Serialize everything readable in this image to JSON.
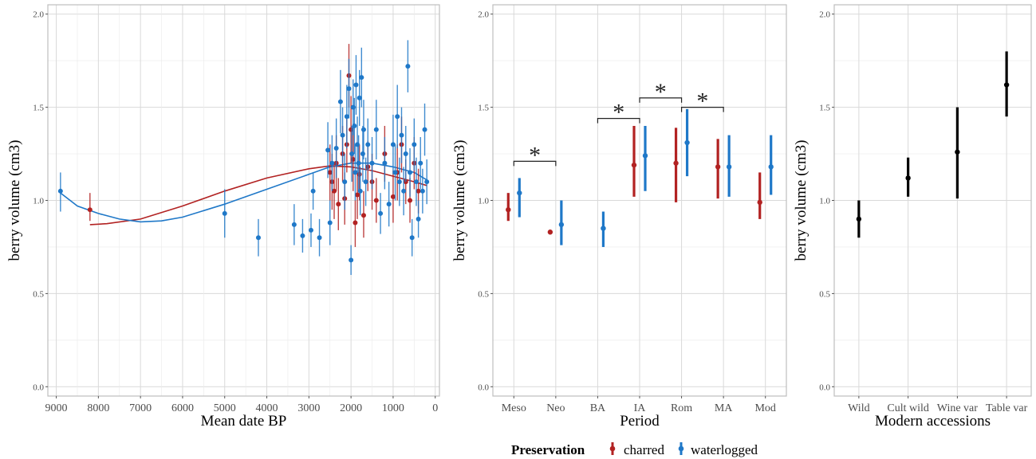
{
  "colors": {
    "charred": "#b22222",
    "waterlogged": "#1f78c8",
    "modern": "#000000",
    "grid": "#d9d9d9",
    "frame": "#bdbdbd"
  },
  "legend": {
    "title": "Preservation",
    "items": [
      "charred",
      "waterlogged"
    ],
    "placement": "bottom"
  },
  "chart_data": [
    {
      "type": "scatter",
      "xlabel": "Mean date BP",
      "ylabel": "berry volume (cm3)",
      "xlim": [
        9200,
        -100
      ],
      "x_reversed": true,
      "ylim": [
        -0.05,
        2.05
      ],
      "x_ticks": [
        9000,
        8000,
        7000,
        6000,
        5000,
        4000,
        3000,
        2000,
        1000,
        0
      ],
      "y_ticks": [
        0.0,
        0.5,
        1.0,
        1.5,
        2.0
      ],
      "grid": true,
      "series": [
        {
          "name": "charred",
          "points": [
            {
              "x": 8200,
              "y": 0.95,
              "lo": 0.89,
              "hi": 1.04
            },
            {
              "x": 2500,
              "y": 1.15,
              "lo": 1.0,
              "hi": 1.3
            },
            {
              "x": 2450,
              "y": 1.1,
              "lo": 0.95,
              "hi": 1.25
            },
            {
              "x": 2400,
              "y": 1.05,
              "lo": 0.9,
              "hi": 1.2
            },
            {
              "x": 2350,
              "y": 1.2,
              "lo": 1.05,
              "hi": 1.35
            },
            {
              "x": 2300,
              "y": 0.98,
              "lo": 0.84,
              "hi": 1.12
            },
            {
              "x": 2200,
              "y": 1.25,
              "lo": 1.1,
              "hi": 1.4
            },
            {
              "x": 2150,
              "y": 1.01,
              "lo": 0.87,
              "hi": 1.15
            },
            {
              "x": 2100,
              "y": 1.3,
              "lo": 1.15,
              "hi": 1.45
            },
            {
              "x": 2050,
              "y": 1.67,
              "lo": 1.5,
              "hi": 1.84
            },
            {
              "x": 2000,
              "y": 1.38,
              "lo": 1.2,
              "hi": 1.56
            },
            {
              "x": 1950,
              "y": 1.22,
              "lo": 1.05,
              "hi": 1.4
            },
            {
              "x": 1900,
              "y": 0.88,
              "lo": 0.75,
              "hi": 1.0
            },
            {
              "x": 1850,
              "y": 1.03,
              "lo": 0.9,
              "hi": 1.16
            },
            {
              "x": 1800,
              "y": 1.14,
              "lo": 1.0,
              "hi": 1.3
            },
            {
              "x": 1700,
              "y": 0.92,
              "lo": 0.8,
              "hi": 1.05
            },
            {
              "x": 1600,
              "y": 1.18,
              "lo": 1.05,
              "hi": 1.32
            },
            {
              "x": 1500,
              "y": 1.1,
              "lo": 0.95,
              "hi": 1.25
            },
            {
              "x": 1400,
              "y": 1.0,
              "lo": 0.88,
              "hi": 1.12
            },
            {
              "x": 1200,
              "y": 1.25,
              "lo": 1.1,
              "hi": 1.4
            },
            {
              "x": 1000,
              "y": 1.02,
              "lo": 0.88,
              "hi": 1.16
            },
            {
              "x": 900,
              "y": 1.15,
              "lo": 1.0,
              "hi": 1.3
            },
            {
              "x": 800,
              "y": 1.3,
              "lo": 1.15,
              "hi": 1.45
            },
            {
              "x": 700,
              "y": 1.1,
              "lo": 0.98,
              "hi": 1.22
            },
            {
              "x": 600,
              "y": 1.0,
              "lo": 0.88,
              "hi": 1.12
            },
            {
              "x": 500,
              "y": 1.2,
              "lo": 1.06,
              "hi": 1.34
            },
            {
              "x": 400,
              "y": 1.05,
              "lo": 0.93,
              "hi": 1.17
            }
          ]
        },
        {
          "name": "waterlogged",
          "points": [
            {
              "x": 8900,
              "y": 1.05,
              "lo": 0.94,
              "hi": 1.15
            },
            {
              "x": 5000,
              "y": 0.93,
              "lo": 0.8,
              "hi": 1.06
            },
            {
              "x": 4200,
              "y": 0.8,
              "lo": 0.7,
              "hi": 0.9
            },
            {
              "x": 3350,
              "y": 0.87,
              "lo": 0.76,
              "hi": 0.98
            },
            {
              "x": 3150,
              "y": 0.81,
              "lo": 0.72,
              "hi": 0.9
            },
            {
              "x": 2950,
              "y": 0.84,
              "lo": 0.75,
              "hi": 0.93
            },
            {
              "x": 2900,
              "y": 1.05,
              "lo": 0.95,
              "hi": 1.15
            },
            {
              "x": 2750,
              "y": 0.8,
              "lo": 0.7,
              "hi": 0.9
            },
            {
              "x": 2550,
              "y": 1.27,
              "lo": 1.12,
              "hi": 1.42
            },
            {
              "x": 2500,
              "y": 0.88,
              "lo": 0.76,
              "hi": 1.0
            },
            {
              "x": 2450,
              "y": 1.2,
              "lo": 1.05,
              "hi": 1.35
            },
            {
              "x": 2350,
              "y": 1.28,
              "lo": 1.12,
              "hi": 1.44
            },
            {
              "x": 2250,
              "y": 1.53,
              "lo": 1.36,
              "hi": 1.7
            },
            {
              "x": 2200,
              "y": 1.35,
              "lo": 1.2,
              "hi": 1.5
            },
            {
              "x": 2150,
              "y": 1.1,
              "lo": 0.95,
              "hi": 1.25
            },
            {
              "x": 2100,
              "y": 1.45,
              "lo": 1.28,
              "hi": 1.62
            },
            {
              "x": 2050,
              "y": 1.6,
              "lo": 1.44,
              "hi": 1.76
            },
            {
              "x": 2000,
              "y": 0.68,
              "lo": 0.6,
              "hi": 0.76
            },
            {
              "x": 1980,
              "y": 1.25,
              "lo": 1.1,
              "hi": 1.4
            },
            {
              "x": 1950,
              "y": 1.5,
              "lo": 1.35,
              "hi": 1.65
            },
            {
              "x": 1920,
              "y": 1.4,
              "lo": 1.25,
              "hi": 1.55
            },
            {
              "x": 1900,
              "y": 1.15,
              "lo": 1.0,
              "hi": 1.3
            },
            {
              "x": 1880,
              "y": 1.62,
              "lo": 1.46,
              "hi": 1.78
            },
            {
              "x": 1850,
              "y": 1.3,
              "lo": 1.15,
              "hi": 1.45
            },
            {
              "x": 1820,
              "y": 1.2,
              "lo": 1.05,
              "hi": 1.35
            },
            {
              "x": 1800,
              "y": 1.55,
              "lo": 1.4,
              "hi": 1.7
            },
            {
              "x": 1780,
              "y": 1.05,
              "lo": 0.92,
              "hi": 1.18
            },
            {
              "x": 1750,
              "y": 1.66,
              "lo": 1.5,
              "hi": 1.82
            },
            {
              "x": 1720,
              "y": 1.25,
              "lo": 1.1,
              "hi": 1.4
            },
            {
              "x": 1700,
              "y": 1.38,
              "lo": 1.22,
              "hi": 1.54
            },
            {
              "x": 1650,
              "y": 1.1,
              "lo": 0.97,
              "hi": 1.23
            },
            {
              "x": 1600,
              "y": 1.3,
              "lo": 1.16,
              "hi": 1.44
            },
            {
              "x": 1500,
              "y": 1.2,
              "lo": 1.06,
              "hi": 1.34
            },
            {
              "x": 1400,
              "y": 1.38,
              "lo": 1.22,
              "hi": 1.54
            },
            {
              "x": 1300,
              "y": 0.93,
              "lo": 0.82,
              "hi": 1.04
            },
            {
              "x": 1200,
              "y": 1.2,
              "lo": 1.06,
              "hi": 1.34
            },
            {
              "x": 1100,
              "y": 0.98,
              "lo": 0.86,
              "hi": 1.1
            },
            {
              "x": 1000,
              "y": 1.3,
              "lo": 1.14,
              "hi": 1.46
            },
            {
              "x": 950,
              "y": 1.15,
              "lo": 1.0,
              "hi": 1.3
            },
            {
              "x": 900,
              "y": 1.45,
              "lo": 1.28,
              "hi": 1.62
            },
            {
              "x": 850,
              "y": 1.1,
              "lo": 0.97,
              "hi": 1.23
            },
            {
              "x": 800,
              "y": 1.35,
              "lo": 1.2,
              "hi": 1.5
            },
            {
              "x": 750,
              "y": 1.05,
              "lo": 0.92,
              "hi": 1.18
            },
            {
              "x": 700,
              "y": 1.25,
              "lo": 1.1,
              "hi": 1.4
            },
            {
              "x": 650,
              "y": 1.72,
              "lo": 1.58,
              "hi": 1.86
            },
            {
              "x": 600,
              "y": 1.15,
              "lo": 1.02,
              "hi": 1.28
            },
            {
              "x": 550,
              "y": 0.8,
              "lo": 0.7,
              "hi": 0.9
            },
            {
              "x": 500,
              "y": 1.3,
              "lo": 1.16,
              "hi": 1.44
            },
            {
              "x": 450,
              "y": 1.1,
              "lo": 0.97,
              "hi": 1.23
            },
            {
              "x": 400,
              "y": 0.9,
              "lo": 0.8,
              "hi": 1.0
            },
            {
              "x": 350,
              "y": 1.2,
              "lo": 1.06,
              "hi": 1.34
            },
            {
              "x": 300,
              "y": 1.05,
              "lo": 0.93,
              "hi": 1.17
            },
            {
              "x": 250,
              "y": 1.38,
              "lo": 1.24,
              "hi": 1.52
            },
            {
              "x": 200,
              "y": 1.1,
              "lo": 0.98,
              "hi": 1.22
            }
          ]
        }
      ],
      "trend_lines": [
        {
          "name": "charred",
          "points": [
            [
              8200,
              0.87
            ],
            [
              7800,
              0.875
            ],
            [
              7000,
              0.9
            ],
            [
              6000,
              0.97
            ],
            [
              5000,
              1.05
            ],
            [
              4000,
              1.12
            ],
            [
              3000,
              1.17
            ],
            [
              2500,
              1.185
            ],
            [
              2000,
              1.18
            ],
            [
              1500,
              1.16
            ],
            [
              1000,
              1.13
            ],
            [
              500,
              1.1
            ],
            [
              200,
              1.08
            ]
          ]
        },
        {
          "name": "waterlogged",
          "points": [
            [
              8900,
              1.04
            ],
            [
              8500,
              0.97
            ],
            [
              8000,
              0.93
            ],
            [
              7500,
              0.9
            ],
            [
              7000,
              0.885
            ],
            [
              6500,
              0.89
            ],
            [
              6000,
              0.91
            ],
            [
              5000,
              0.98
            ],
            [
              4000,
              1.06
            ],
            [
              3000,
              1.14
            ],
            [
              2500,
              1.18
            ],
            [
              2000,
              1.2
            ],
            [
              1500,
              1.2
            ],
            [
              1000,
              1.18
            ],
            [
              500,
              1.15
            ],
            [
              200,
              1.11
            ]
          ]
        }
      ]
    },
    {
      "type": "scatter",
      "xlabel": "Period",
      "ylabel": "berry volume (cm3)",
      "categories": [
        "Meso",
        "Neo",
        "BA",
        "IA",
        "Rom",
        "MA",
        "Mod"
      ],
      "ylim": [
        -0.05,
        2.05
      ],
      "y_ticks": [
        0.0,
        0.5,
        1.0,
        1.5,
        2.0
      ],
      "grid": true,
      "series": [
        {
          "name": "charred",
          "values": [
            {
              "cat": "Meso",
              "y": 0.95,
              "lo": 0.89,
              "hi": 1.04
            },
            {
              "cat": "Neo",
              "y": 0.83,
              "lo": 0.82,
              "hi": 0.84
            },
            {
              "cat": "IA",
              "y": 1.19,
              "lo": 1.02,
              "hi": 1.4
            },
            {
              "cat": "Rom",
              "y": 1.2,
              "lo": 0.99,
              "hi": 1.39
            },
            {
              "cat": "MA",
              "y": 1.18,
              "lo": 1.01,
              "hi": 1.33
            },
            {
              "cat": "Mod",
              "y": 0.99,
              "lo": 0.9,
              "hi": 1.15
            }
          ]
        },
        {
          "name": "waterlogged",
          "values": [
            {
              "cat": "Meso",
              "y": 1.04,
              "lo": 0.91,
              "hi": 1.12
            },
            {
              "cat": "Neo",
              "y": 0.87,
              "lo": 0.76,
              "hi": 1.0
            },
            {
              "cat": "BA",
              "y": 0.85,
              "lo": 0.75,
              "hi": 0.94
            },
            {
              "cat": "IA",
              "y": 1.24,
              "lo": 1.05,
              "hi": 1.4
            },
            {
              "cat": "Rom",
              "y": 1.31,
              "lo": 1.13,
              "hi": 1.49
            },
            {
              "cat": "MA",
              "y": 1.18,
              "lo": 1.02,
              "hi": 1.35
            },
            {
              "cat": "Mod",
              "y": 1.18,
              "lo": 1.03,
              "hi": 1.35
            }
          ]
        }
      ],
      "annotations": [
        {
          "text": "*",
          "from": "Meso",
          "to": "Neo",
          "y": 1.21
        },
        {
          "text": "*",
          "from": "BA",
          "to": "IA",
          "y": 1.44
        },
        {
          "text": "*",
          "from": "IA",
          "to": "Rom",
          "y": 1.55
        },
        {
          "text": "*",
          "from": "Rom",
          "to": "MA",
          "y": 1.5
        }
      ]
    },
    {
      "type": "scatter",
      "xlabel": "Modern accessions",
      "ylabel": "berry volume (cm3)",
      "categories": [
        "Wild",
        "Cult wild",
        "Wine var",
        "Table var"
      ],
      "ylim": [
        -0.05,
        2.05
      ],
      "y_ticks": [
        0.0,
        0.5,
        1.0,
        1.5,
        2.0
      ],
      "grid": true,
      "series": [
        {
          "values": [
            {
              "cat": "Wild",
              "y": 0.9,
              "lo": 0.8,
              "hi": 1.0
            },
            {
              "cat": "Cult wild",
              "y": 1.12,
              "lo": 1.02,
              "hi": 1.23
            },
            {
              "cat": "Wine var",
              "y": 1.26,
              "lo": 1.01,
              "hi": 1.5
            },
            {
              "cat": "Table var",
              "y": 1.62,
              "lo": 1.45,
              "hi": 1.8
            }
          ]
        }
      ]
    }
  ]
}
